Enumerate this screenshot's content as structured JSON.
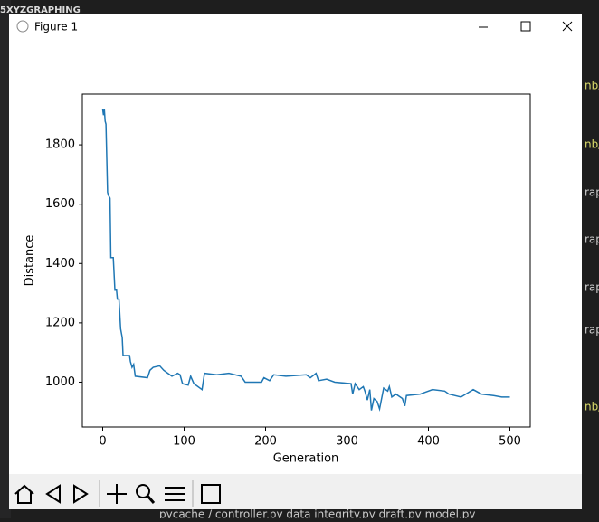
{
  "window": {
    "title": "Figure 1"
  },
  "background": {
    "top_label": "5XYZGRAPHING",
    "bottom_path": "pycache  /  controller.py  data integrity.py  draft.py  model.py",
    "right_fragments": [
      "nb/",
      "nb/",
      "rap",
      "rap",
      "rap",
      "rap",
      "nb/"
    ]
  },
  "chart_data": {
    "type": "line",
    "xlabel": "Generation",
    "ylabel": "Distance",
    "color": "#1f77b4",
    "grid": false,
    "x": [
      0,
      1,
      2,
      3,
      4,
      6,
      7,
      9,
      10,
      13,
      15,
      17,
      18,
      20,
      22,
      24,
      25,
      33,
      34,
      36,
      38,
      40,
      55,
      58,
      62,
      70,
      75,
      80,
      85,
      92,
      95,
      98,
      105,
      108,
      112,
      122,
      125,
      140,
      155,
      170,
      175,
      195,
      198,
      205,
      210,
      225,
      250,
      255,
      262,
      265,
      275,
      285,
      305,
      307,
      310,
      315,
      320,
      322,
      325,
      328,
      330,
      333,
      337,
      340,
      345,
      350,
      352,
      355,
      360,
      368,
      371,
      373,
      390,
      395,
      405,
      420,
      425,
      440,
      455,
      465,
      480,
      490,
      500
    ],
    "values": [
      1920,
      1900,
      1920,
      1880,
      1870,
      1640,
      1630,
      1620,
      1420,
      1420,
      1310,
      1310,
      1280,
      1280,
      1180,
      1150,
      1090,
      1090,
      1070,
      1050,
      1060,
      1020,
      1015,
      1040,
      1050,
      1055,
      1040,
      1030,
      1020,
      1030,
      1025,
      995,
      990,
      1020,
      995,
      975,
      1030,
      1025,
      1030,
      1020,
      1000,
      1000,
      1015,
      1005,
      1025,
      1020,
      1025,
      1015,
      1030,
      1005,
      1010,
      1000,
      995,
      960,
      995,
      975,
      985,
      970,
      940,
      975,
      905,
      945,
      935,
      910,
      980,
      970,
      985,
      950,
      960,
      945,
      920,
      955,
      960,
      965,
      975,
      970,
      960,
      950,
      975,
      960,
      955,
      950,
      950
    ],
    "xlim": [
      -25,
      525
    ],
    "ylim": [
      849,
      1971
    ],
    "xticks": [
      0,
      100,
      200,
      300,
      400,
      500
    ],
    "yticks": [
      1000,
      1200,
      1400,
      1600,
      1800
    ]
  }
}
